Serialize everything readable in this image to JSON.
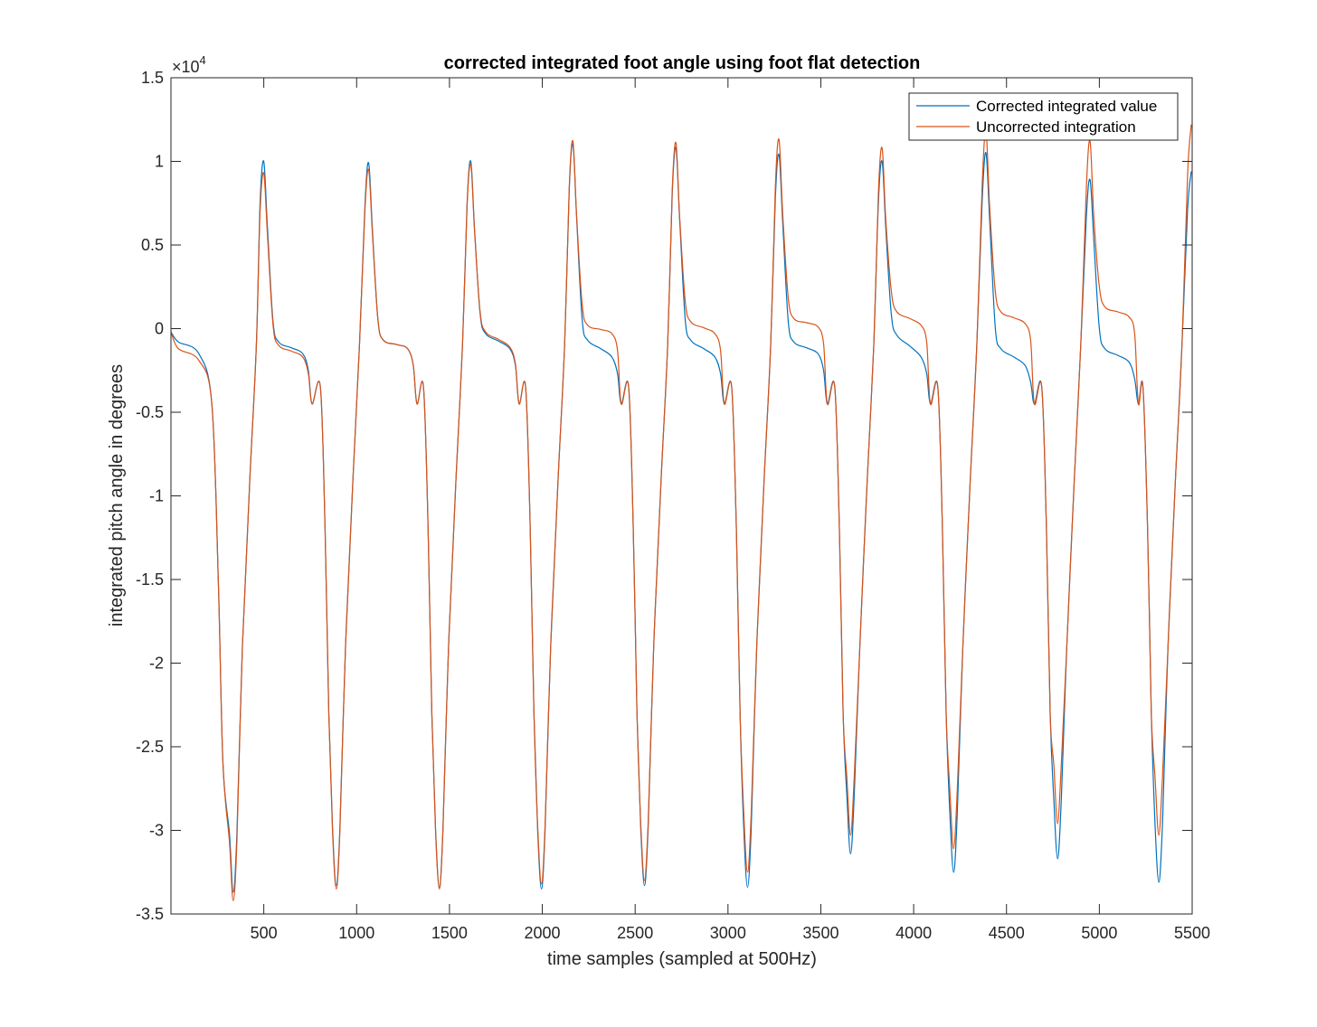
{
  "chart_data": {
    "type": "line",
    "title": "corrected integrated foot angle using foot flat detection",
    "xlabel": "time samples (sampled at 500Hz)",
    "ylabel": "integrated pitch angle in degrees",
    "y_exponent_label": "×10",
    "y_exponent_power": "4",
    "xlim": [
      0,
      5500
    ],
    "ylim": [
      -3.5,
      1.5
    ],
    "y_scale_note": "values in units of 10^4 degrees",
    "x_ticks": [
      500,
      1000,
      1500,
      2000,
      2500,
      3000,
      3500,
      4000,
      4500,
      5000,
      5500
    ],
    "x_tick_labels": [
      "500",
      "1000",
      "1500",
      "2000",
      "2500",
      "3000",
      "3500",
      "4000",
      "4500",
      "5000",
      "5500"
    ],
    "y_ticks": [
      1.5,
      1,
      0.5,
      0,
      -0.5,
      -1,
      -1.5,
      -2,
      -2.5,
      -3,
      -3.5
    ],
    "y_tick_labels": [
      "1.5",
      "1",
      "0.5",
      "0",
      "-0.5",
      "-1",
      "-1.5",
      "-2",
      "-2.5",
      "-3",
      "-3.5"
    ],
    "legend_position": "top-right",
    "grid": false,
    "colors": {
      "corrected": "#0072BD",
      "uncorrected": "#D95319",
      "axis": "#262626"
    },
    "cycles": [
      {
        "min_x": 335,
        "corr_min": -3.37,
        "unc_min": -3.42,
        "peak_x": 500,
        "corr_peak": 1.0,
        "unc_peak": 0.93,
        "corr_flat": [
          -0.08,
          -0.15
        ],
        "unc_flat": [
          -0.1,
          -0.17
        ]
      },
      {
        "min_x": 890,
        "corr_min": -3.33,
        "unc_min": -3.35,
        "peak_x": 1065,
        "corr_peak": 0.99,
        "unc_peak": 0.95,
        "corr_flat": [
          -0.07,
          -0.12
        ],
        "unc_flat": [
          -0.07,
          -0.12
        ]
      },
      {
        "min_x": 1445,
        "corr_min": -3.34,
        "unc_min": -3.35,
        "peak_x": 1615,
        "corr_peak": 1.0,
        "unc_peak": 0.98,
        "corr_flat": [
          -0.03,
          -0.12
        ],
        "unc_flat": [
          -0.02,
          -0.11
        ]
      },
      {
        "min_x": 1995,
        "corr_min": -3.35,
        "unc_min": -3.32,
        "peak_x": 2165,
        "corr_peak": 1.1,
        "unc_peak": 1.12,
        "corr_flat": [
          -0.07,
          -0.17
        ],
        "unc_flat": [
          0.02,
          -0.03
        ]
      },
      {
        "min_x": 2550,
        "corr_min": -3.33,
        "unc_min": -3.3,
        "peak_x": 2720,
        "corr_peak": 1.08,
        "unc_peak": 1.11,
        "corr_flat": [
          -0.07,
          -0.17
        ],
        "unc_flat": [
          0.04,
          -0.03
        ]
      },
      {
        "min_x": 3105,
        "corr_min": -3.34,
        "unc_min": -3.25,
        "peak_x": 3275,
        "corr_peak": 1.04,
        "unc_peak": 1.13,
        "corr_flat": [
          -0.08,
          -0.15
        ],
        "unc_flat": [
          0.06,
          0.01
        ]
      },
      {
        "min_x": 3660,
        "corr_min": -3.14,
        "unc_min": -3.03,
        "peak_x": 3830,
        "corr_peak": 1.0,
        "unc_peak": 1.08,
        "corr_flat": [
          -0.04,
          -0.17
        ],
        "unc_flat": [
          0.1,
          0.02
        ]
      },
      {
        "min_x": 4215,
        "corr_min": -3.25,
        "unc_min": -3.11,
        "peak_x": 4390,
        "corr_peak": 1.05,
        "unc_peak": 1.18,
        "corr_flat": [
          -0.12,
          -0.22
        ],
        "unc_flat": [
          0.1,
          0.03
        ]
      },
      {
        "min_x": 4775,
        "corr_min": -3.17,
        "unc_min": -2.96,
        "peak_x": 4950,
        "corr_peak": 0.89,
        "unc_peak": 1.12,
        "corr_flat": [
          -0.12,
          -0.2
        ],
        "unc_flat": [
          0.13,
          0.07
        ]
      },
      {
        "min_x": 5320,
        "corr_min": -3.31,
        "unc_min": -3.03,
        "peak_x": 5495,
        "corr_peak": 0.94,
        "unc_peak": 1.22,
        "corr_flat": [],
        "unc_flat": []
      }
    ],
    "start": {
      "x": 0,
      "corr": -0.02,
      "unc": -0.02,
      "corr_flat": [
        -0.08,
        -0.12
      ],
      "unc_flat": [
        -0.12,
        -0.16
      ]
    },
    "series": [
      {
        "name": "Corrected integrated value",
        "key": "corrected"
      },
      {
        "name": "Uncorrected integration",
        "key": "uncorrected"
      }
    ]
  }
}
